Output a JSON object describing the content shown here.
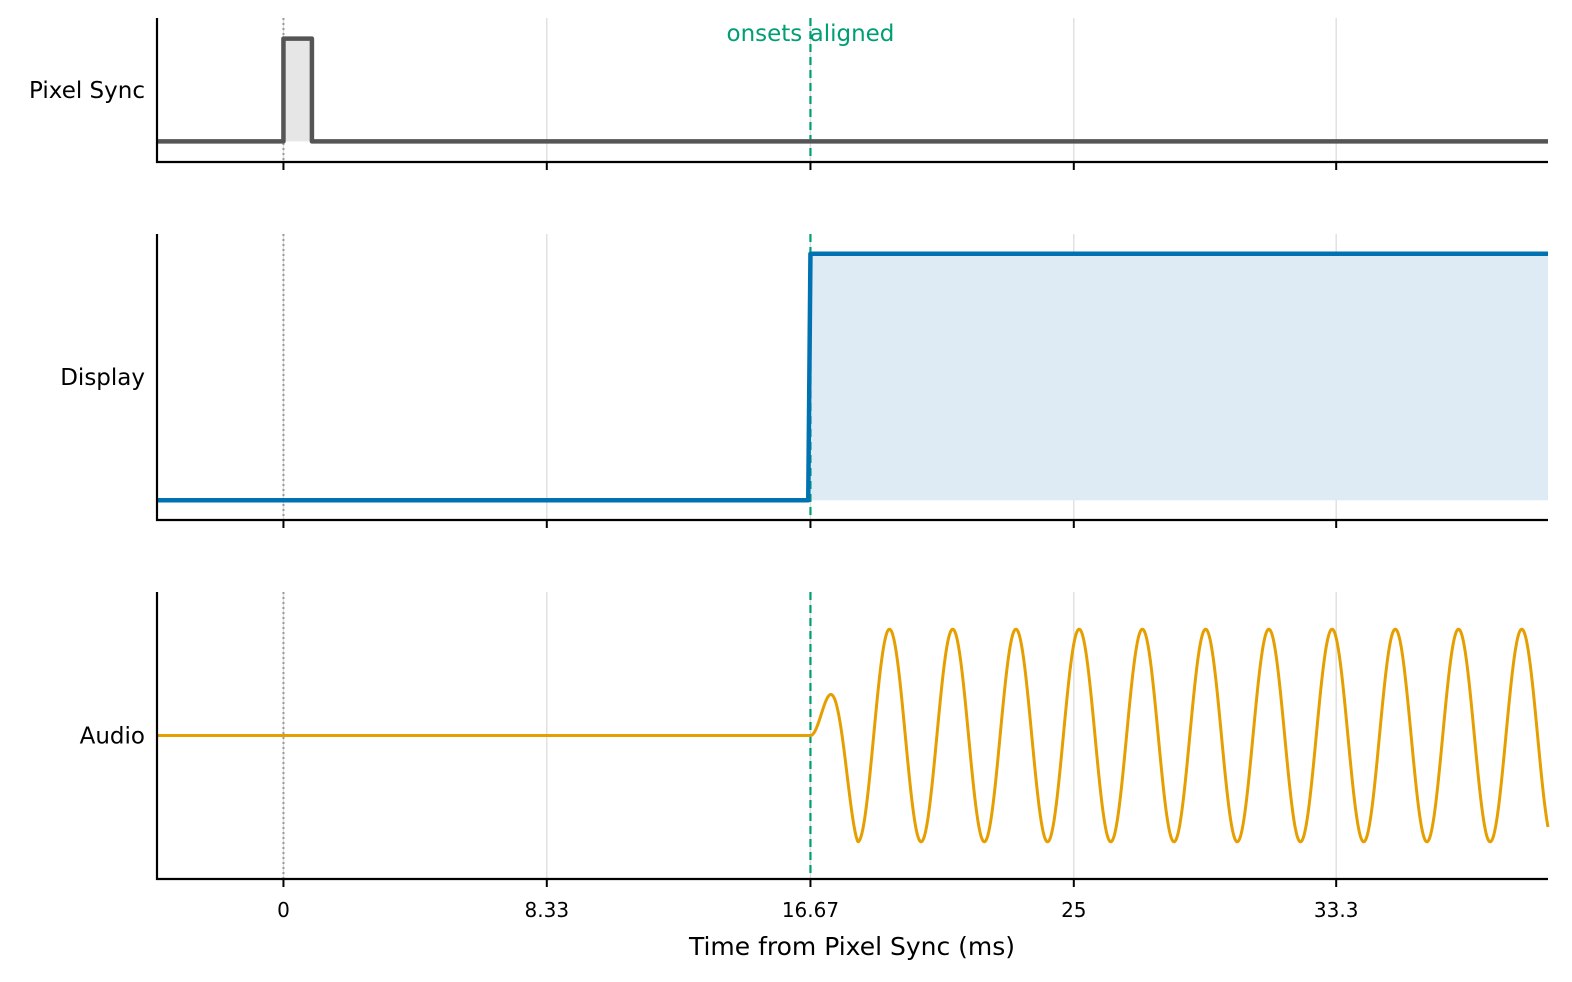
{
  "chart_data": {
    "type": "line",
    "xlabel": "Time from Pixel Sync (ms)",
    "xlim": [
      -4,
      40
    ],
    "xticks": [
      0,
      8.33,
      16.67,
      25,
      33.3
    ],
    "xtick_labels": [
      "0",
      "8.33",
      "16.67",
      "25",
      "33.3"
    ],
    "grid": "vertical",
    "reference_lines": [
      {
        "x": 0,
        "style": "dotted",
        "color": "#999999"
      },
      {
        "x": 16.67,
        "style": "dashed",
        "color": "#009E73",
        "label": "onsets aligned"
      }
    ],
    "annotation": {
      "text": "onsets aligned",
      "x": 16.67,
      "color": "#009E73"
    },
    "series": [
      {
        "name": "Pixel Sync",
        "kind": "pulse",
        "color": "#555555",
        "fill": "#e6e6e6",
        "x": [
          -4,
          0,
          0,
          0.9,
          0.9,
          40
        ],
        "y": [
          0,
          0,
          1,
          1,
          0,
          0
        ],
        "ylim": [
          -0.2,
          1.2
        ]
      },
      {
        "name": "Display",
        "kind": "step",
        "color": "#0072B2",
        "fill": "#deebf5",
        "x": [
          -4,
          16.6,
          16.67,
          40
        ],
        "y": [
          0,
          0,
          1,
          1
        ],
        "ylim": [
          -0.08,
          1.08
        ]
      },
      {
        "name": "Audio",
        "kind": "sine",
        "color": "#E69F00",
        "onset": 16.67,
        "period": 2,
        "amplitude": 1,
        "ramp_ms": 1.5,
        "x_range": [
          -4,
          40
        ],
        "ylim": [
          -1.35,
          1.35
        ]
      }
    ]
  }
}
